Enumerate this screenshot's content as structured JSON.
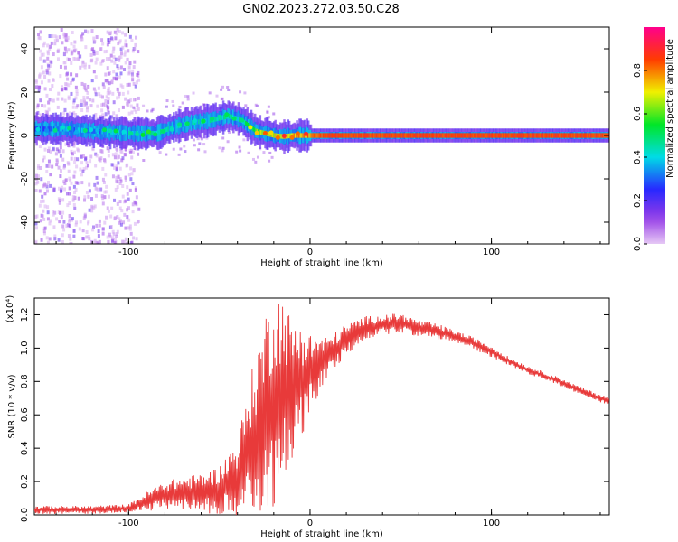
{
  "figure_title": "GN02.2023.272.03.50.C28",
  "chart_data": [
    {
      "type": "heatmap",
      "title": "",
      "xlabel": "Height of straight line (km)",
      "ylabel": "Frequency (Hz)",
      "xlim": [
        -152,
        165
      ],
      "ylim": [
        -50,
        50
      ],
      "xticks": [
        -100,
        0,
        100
      ],
      "yticks": [
        -40,
        -20,
        0,
        20,
        40
      ],
      "colorbar": {
        "label": "Normalized spectral amplitude",
        "range": [
          0.0,
          1.0
        ],
        "ticks": [
          0.0,
          0.2,
          0.4,
          0.6,
          0.8
        ],
        "colormap": "rainbow (white-violet-blue-cyan-green-yellow-red-magenta)"
      },
      "ridge": {
        "x": [
          -150,
          -135,
          -120,
          -100,
          -85,
          -75,
          -65,
          -55,
          -45,
          -38,
          -30,
          -25,
          -20,
          -15,
          -10,
          -5,
          0,
          10,
          50,
          100,
          165
        ],
        "y": [
          3,
          3,
          2,
          1,
          1,
          4,
          6,
          7,
          9,
          7,
          2,
          1,
          0,
          -0.5,
          0,
          0,
          0,
          0,
          0,
          0,
          0
        ],
        "amplitude": [
          0.35,
          0.4,
          0.4,
          0.45,
          0.5,
          0.45,
          0.45,
          0.5,
          0.5,
          0.5,
          0.7,
          0.75,
          0.8,
          0.85,
          0.85,
          0.9,
          0.95,
          1.0,
          1.0,
          1.0,
          1.0
        ]
      },
      "noise_region": {
        "x_from": -152,
        "x_to": -100,
        "level": "scattered low amplitude across all frequencies"
      }
    },
    {
      "type": "line",
      "title": "",
      "xlabel": "Height of straight line (km)",
      "ylabel": "SNR (10 * v/v)",
      "y_multiplier": "(x10⁴)",
      "xlim": [
        -152,
        165
      ],
      "ylim": [
        0,
        1.3
      ],
      "xticks": [
        -100,
        0,
        100
      ],
      "yticks": [
        0.0,
        0.2,
        0.4,
        0.6,
        0.8,
        1.0,
        1.2
      ],
      "color": "#e83a3a",
      "series": [
        {
          "x": [
            -152,
            -140,
            -120,
            -100,
            -90,
            -80,
            -70,
            -60,
            -50,
            -40,
            -35,
            -30,
            -25,
            -20,
            -15,
            -10,
            -5,
            0,
            10,
            20,
            30,
            40,
            50,
            60,
            70,
            80,
            90,
            100,
            110,
            120,
            130,
            140,
            150,
            160,
            165
          ],
          "y": [
            0.03,
            0.03,
            0.03,
            0.04,
            0.08,
            0.12,
            0.13,
            0.13,
            0.15,
            0.22,
            0.35,
            0.45,
            0.6,
            0.7,
            0.78,
            0.75,
            0.8,
            0.85,
            0.95,
            1.05,
            1.12,
            1.14,
            1.15,
            1.12,
            1.1,
            1.07,
            1.03,
            0.98,
            0.92,
            0.87,
            0.83,
            0.79,
            0.74,
            0.7,
            0.68
          ],
          "noise": [
            0.02,
            0.02,
            0.02,
            0.02,
            0.05,
            0.07,
            0.08,
            0.1,
            0.12,
            0.2,
            0.3,
            0.45,
            0.5,
            0.55,
            0.45,
            0.35,
            0.3,
            0.2,
            0.1,
            0.08,
            0.06,
            0.05,
            0.05,
            0.04,
            0.04,
            0.03,
            0.03,
            0.03,
            0.02,
            0.02,
            0.02,
            0.02,
            0.02,
            0.02,
            0.02
          ]
        }
      ]
    }
  ]
}
